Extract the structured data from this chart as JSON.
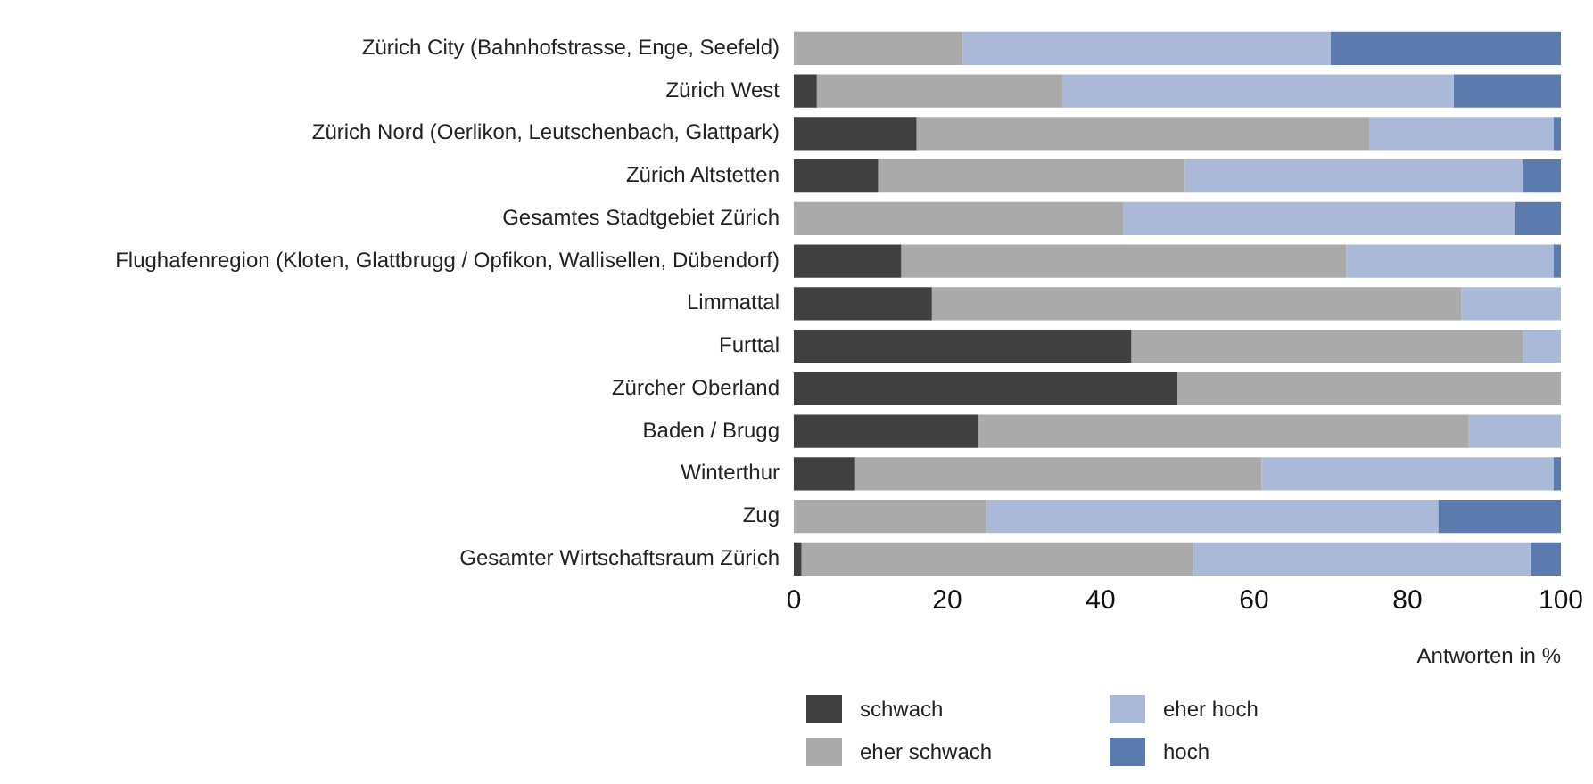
{
  "chart_data": {
    "type": "bar",
    "orientation": "horizontal",
    "stacked": true,
    "xlabel": "Antworten in %",
    "categories": [
      "Zürich City (Bahnhofstrasse, Enge, Seefeld)",
      "Zürich West",
      "Zürich Nord (Oerlikon, Leutschenbach, Glattpark)",
      "Zürich Altstetten",
      "Gesamtes Stadtgebiet Zürich",
      "Flughafenregion (Kloten, Glattbrugg / Opfikon, Wallisellen, Dübendorf)",
      "Limmattal",
      "Furttal",
      "Zürcher Oberland",
      "Baden / Brugg",
      "Winterthur",
      "Zug",
      "Gesamter Wirtschaftsraum Zürich"
    ],
    "series": [
      {
        "name": "schwach",
        "color": "#404040",
        "values": [
          0,
          3,
          16,
          11,
          0,
          14,
          18,
          44,
          50,
          24,
          8,
          0,
          1
        ]
      },
      {
        "name": "eher schwach",
        "color": "#aaaaaa",
        "values": [
          22,
          32,
          59,
          40,
          43,
          58,
          69,
          51,
          50,
          64,
          53,
          25,
          51
        ]
      },
      {
        "name": "eher hoch",
        "color": "#abb9d9",
        "values": [
          48,
          51,
          24,
          44,
          51,
          27,
          13,
          5,
          0,
          12,
          38,
          59,
          44
        ]
      },
      {
        "name": "hoch",
        "color": "#5b7aae",
        "values": [
          30,
          14,
          1,
          5,
          6,
          1,
          0,
          0,
          0,
          0,
          1,
          16,
          4
        ]
      }
    ],
    "xlim": [
      0,
      100
    ],
    "xticks": [
      0,
      20,
      40,
      60,
      80,
      100
    ],
    "grid": false,
    "legend": "bottom"
  }
}
